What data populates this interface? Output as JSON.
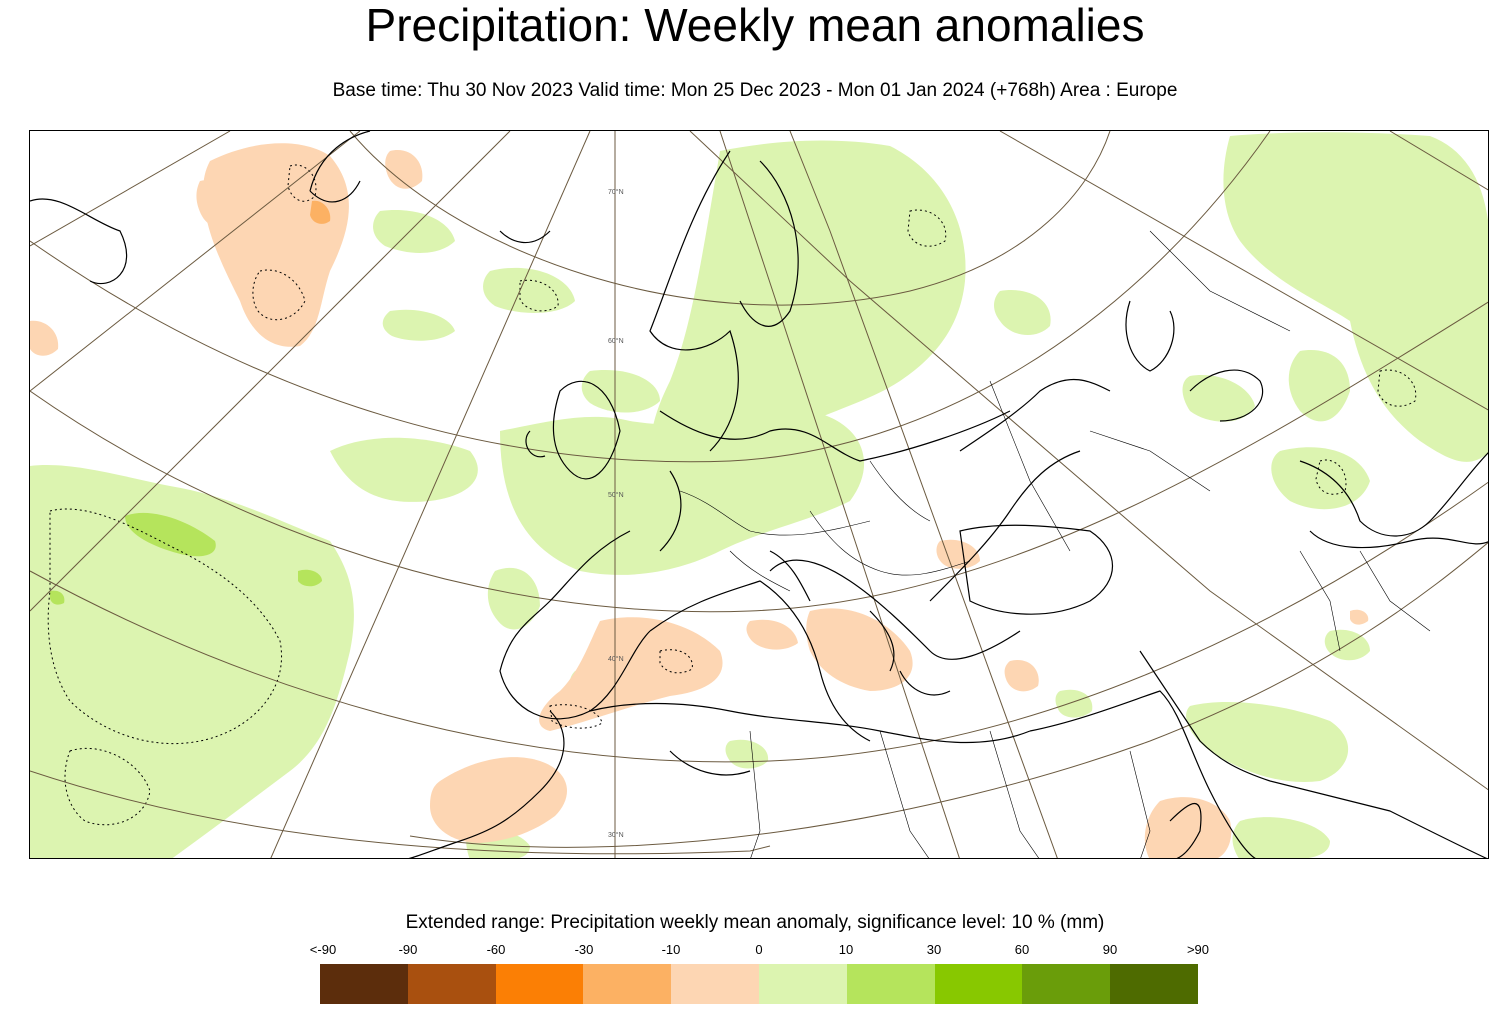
{
  "title": "Precipitation: Weekly mean anomalies",
  "subtitle": "Base time: Thu 30 Nov 2023 Valid time: Mon 25 Dec 2023 - Mon 01 Jan 2024 (+768h) Area : Europe",
  "map": {
    "latitude_labels": [
      "70°N",
      "60°N",
      "50°N",
      "40°N",
      "30°N"
    ]
  },
  "legend": {
    "title": "Extended range: Precipitation weekly mean anomaly, significance level: 10 % (mm)",
    "tick_labels": [
      "<-90",
      "-90",
      "-60",
      "-30",
      "-10",
      "0",
      "10",
      "30",
      "60",
      "90",
      ">90"
    ],
    "colors": [
      "#5c2d0c",
      "#a9500f",
      "#fb7f05",
      "#fcb163",
      "#fdd6b3",
      "#dcf4b0",
      "#b5e45c",
      "#88c800",
      "#6a9d0a",
      "#4e6b00"
    ]
  }
}
